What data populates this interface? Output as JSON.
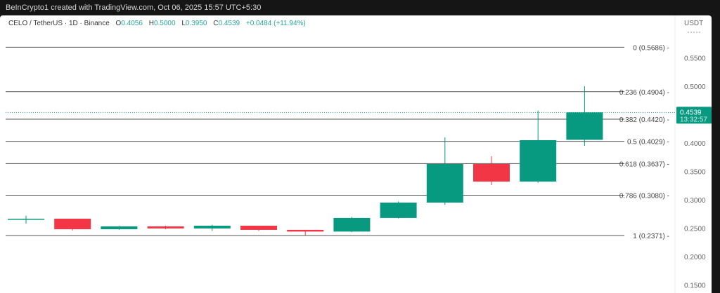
{
  "header": {
    "attribution": "BeInCrypto1 created with TradingView.com, Oct 06, 2025 15:57 UTC+5:30"
  },
  "legend": {
    "symbol": "CELO / TetherUS · 1D · Binance",
    "o_label": "O",
    "o": "0.4056",
    "h_label": "H",
    "h": "0.5000",
    "l_label": "L",
    "l": "0.3950",
    "c_label": "C",
    "c": "0.4539",
    "change": "+0.0484 (+11.94%)"
  },
  "colors": {
    "up": "#089981",
    "down": "#f23645",
    "fib_line": "#555555"
  },
  "chart_data": {
    "type": "candlestick",
    "currency": "USDT",
    "ylim": [
      0.14,
      0.58
    ],
    "y_ticks": [
      "0.5500",
      "0.5000",
      "0.4000",
      "0.3500",
      "0.3000",
      "0.2500",
      "0.2000",
      "0.1500"
    ],
    "candles": [
      {
        "o": 0.2655,
        "h": 0.272,
        "l": 0.258,
        "c": 0.2665
      },
      {
        "o": 0.2667,
        "h": 0.2667,
        "l": 0.246,
        "c": 0.2481
      },
      {
        "o": 0.2481,
        "h": 0.254,
        "l": 0.247,
        "c": 0.2531
      },
      {
        "o": 0.2531,
        "h": 0.2545,
        "l": 0.248,
        "c": 0.2495
      },
      {
        "o": 0.2495,
        "h": 0.256,
        "l": 0.245,
        "c": 0.2543
      },
      {
        "o": 0.2543,
        "h": 0.2545,
        "l": 0.245,
        "c": 0.247
      },
      {
        "o": 0.247,
        "h": 0.247,
        "l": 0.237,
        "c": 0.244
      },
      {
        "o": 0.244,
        "h": 0.27,
        "l": 0.243,
        "c": 0.268
      },
      {
        "o": 0.268,
        "h": 0.297,
        "l": 0.267,
        "c": 0.295
      },
      {
        "o": 0.295,
        "h": 0.41,
        "l": 0.291,
        "c": 0.363
      },
      {
        "o": 0.363,
        "h": 0.3765,
        "l": 0.326,
        "c": 0.332
      },
      {
        "o": 0.332,
        "h": 0.457,
        "l": 0.33,
        "c": 0.405
      },
      {
        "o": 0.4056,
        "h": 0.5,
        "l": 0.395,
        "c": 0.4539
      }
    ],
    "fib_levels": [
      {
        "label": "0 (0.5686)",
        "value": 0.5686
      },
      {
        "label": "0.236 (0.4904)",
        "value": 0.4904
      },
      {
        "label": "0.382 (0.4420)",
        "value": 0.442
      },
      {
        "label": "0.5 (0.4029)",
        "value": 0.4029
      },
      {
        "label": "0.618 (0.3637)",
        "value": 0.3637
      },
      {
        "label": "0.786 (0.3080)",
        "value": 0.308
      },
      {
        "label": "1 (0.2371)",
        "value": 0.2371
      }
    ],
    "last_price": {
      "value": 0.4539,
      "label": "0.4539",
      "countdown": "13:32:57"
    }
  }
}
